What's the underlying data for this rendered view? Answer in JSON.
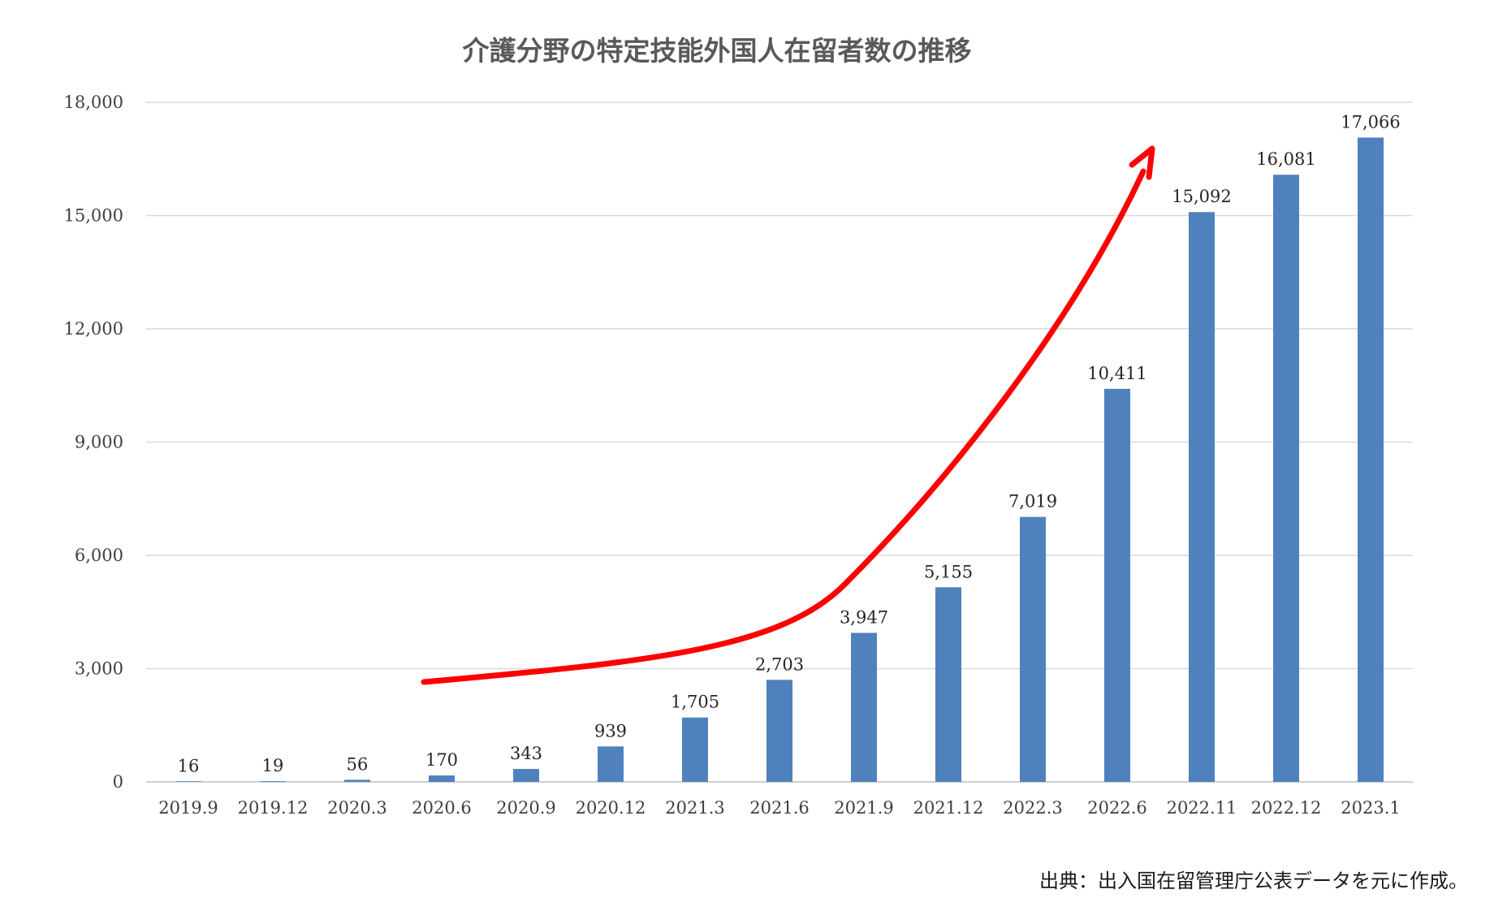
{
  "chart_data": {
    "type": "bar",
    "title": "介護分野の特定技能外国人在留者数の推移",
    "xlabel": "",
    "ylabel": "",
    "ylim": [
      0,
      18000
    ],
    "yticks": [
      0,
      3000,
      6000,
      9000,
      12000,
      15000,
      18000
    ],
    "ytick_labels": [
      "0",
      "3,000",
      "6,000",
      "9,000",
      "12,000",
      "15,000",
      "18,000"
    ],
    "categories": [
      "2019.9",
      "2019.12",
      "2020.3",
      "2020.6",
      "2020.9",
      "2020.12",
      "2021.3",
      "2021.6",
      "2021.9",
      "2021.12",
      "2022.3",
      "2022.6",
      "2022.11",
      "2022.12",
      "2023.1"
    ],
    "values": [
      16,
      19,
      56,
      170,
      343,
      939,
      1705,
      2703,
      3947,
      5155,
      7019,
      10411,
      15092,
      16081,
      17066
    ],
    "value_labels": [
      "16",
      "19",
      "56",
      "170",
      "343",
      "939",
      "1,705",
      "2,703",
      "3,947",
      "5,155",
      "7,019",
      "10,411",
      "15,092",
      "16,081",
      "17,066"
    ],
    "grid": true,
    "legend": "none",
    "bar_color": "#4f81bd",
    "annotation": {
      "type": "trend-arrow",
      "color": "#ff0000"
    }
  },
  "source_note": "出典：出入国在留管理庁公表データを元に作成。"
}
